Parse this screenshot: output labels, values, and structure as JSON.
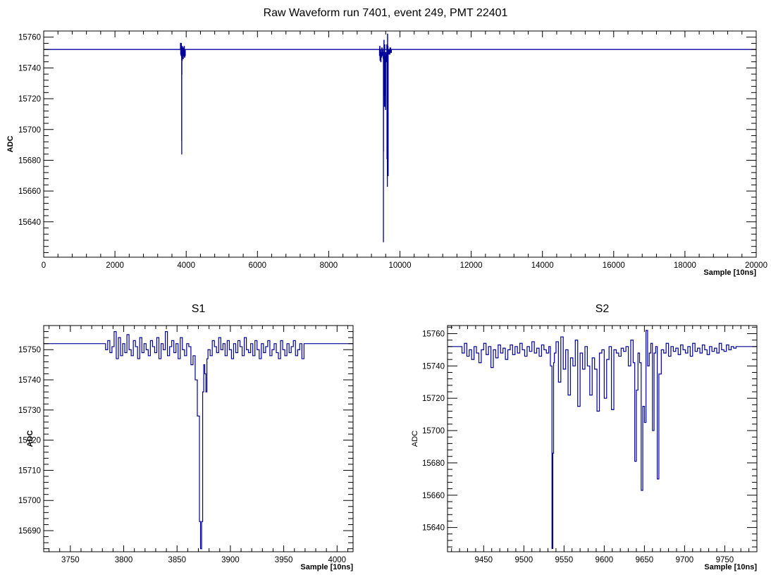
{
  "figure_title": "Raw Waveform run 7401, event 249, PMT 22401",
  "line_color": "#000099",
  "chart_data": [
    {
      "type": "line",
      "title": "",
      "xlabel": "Sample [10ns]",
      "ylabel": "ADC",
      "xlim": [
        0,
        20000
      ],
      "ylim": [
        15617,
        15764
      ],
      "xticks": [
        0,
        2000,
        4000,
        6000,
        8000,
        10000,
        12000,
        14000,
        16000,
        18000,
        20000
      ],
      "yticks": [
        15640,
        15660,
        15680,
        15700,
        15720,
        15740,
        15760
      ],
      "baseline": 15752,
      "series": [
        {
          "x": [
            0,
            3835,
            3838,
            3845,
            3850,
            3855,
            3860,
            3865,
            3870,
            3872,
            3874,
            3876,
            3880,
            3885,
            3890,
            3895,
            3900,
            3905,
            3910,
            3915,
            3920,
            3925,
            3930,
            3940,
            3950,
            3960,
            3970,
            3975,
            9420,
            9425,
            9430,
            9440,
            9450,
            9460,
            9470,
            9480,
            9490,
            9500,
            9510,
            9520,
            9530,
            9535,
            9537,
            9540,
            9545,
            9550,
            9555,
            9560,
            9565,
            9570,
            9575,
            9580,
            9585,
            9590,
            9595,
            9600,
            9610,
            9620,
            9630,
            9635,
            9640,
            9645,
            9648,
            9650,
            9655,
            9660,
            9665,
            9670,
            9680,
            9700,
            9720,
            9740,
            9760,
            9770,
            20000
          ],
          "y": [
            15752,
            15752,
            15756,
            15749,
            15754,
            15748,
            15756,
            15750,
            15747,
            15693,
            15684,
            15736,
            15750,
            15745,
            15754,
            15748,
            15753,
            15749,
            15752,
            15746,
            15753,
            15748,
            15750,
            15754,
            15747,
            15751,
            15748,
            15752,
            15752,
            15748,
            15754,
            15745,
            15752,
            15744,
            15750,
            15747,
            15753,
            15748,
            15752,
            15750,
            15746,
            15627,
            15686,
            15748,
            15730,
            15758,
            15722,
            15740,
            15715,
            15755,
            15733,
            15750,
            15722,
            15740,
            15713,
            15748,
            15750,
            15744,
            15755,
            15681,
            15725,
            15663,
            15705,
            15762,
            15748,
            15754,
            15670,
            15749,
            15752,
            15749,
            15753,
            15750,
            15752,
            15752,
            15752
          ]
        }
      ]
    },
    {
      "type": "line",
      "title": "S1",
      "xlabel": "Sample [10ns]",
      "ylabel": "ADC",
      "xlim": [
        3725,
        4015
      ],
      "ylim": [
        15683,
        15758
      ],
      "xticks": [
        3750,
        3800,
        3850,
        3900,
        3950,
        4000
      ],
      "yticks": [
        15690,
        15700,
        15710,
        15720,
        15730,
        15740,
        15750
      ],
      "series": [
        {
          "x": [
            3725,
            3780,
            3783,
            3785,
            3787,
            3789,
            3791,
            3793,
            3795,
            3797,
            3799,
            3801,
            3803,
            3805,
            3807,
            3809,
            3811,
            3813,
            3815,
            3817,
            3819,
            3821,
            3823,
            3825,
            3827,
            3829,
            3831,
            3833,
            3835,
            3837,
            3839,
            3841,
            3843,
            3845,
            3847,
            3849,
            3851,
            3853,
            3855,
            3857,
            3859,
            3861,
            3863,
            3865,
            3867,
            3869,
            3871,
            3872,
            3873,
            3874,
            3875,
            3876,
            3877,
            3878,
            3879,
            3881,
            3883,
            3885,
            3887,
            3889,
            3891,
            3893,
            3895,
            3897,
            3899,
            3901,
            3903,
            3905,
            3907,
            3909,
            3911,
            3913,
            3915,
            3917,
            3919,
            3921,
            3923,
            3925,
            3927,
            3929,
            3931,
            3933,
            3935,
            3937,
            3939,
            3941,
            3943,
            3945,
            3947,
            3949,
            3951,
            3953,
            3955,
            3957,
            3959,
            3961,
            3963,
            3965,
            3967,
            3969,
            3971,
            4015
          ],
          "y": [
            15752,
            15752,
            15750,
            15753,
            15749,
            15751,
            15756,
            15747,
            15754,
            15748,
            15752,
            15749,
            15755,
            15750,
            15748,
            15753,
            15751,
            15747,
            15754,
            15749,
            15752,
            15750,
            15748,
            15753,
            15751,
            15749,
            15754,
            15747,
            15752,
            15750,
            15756,
            15748,
            15751,
            15753,
            15749,
            15752,
            15747,
            15754,
            15750,
            15748,
            15752,
            15751,
            15745,
            15748,
            15740,
            15728,
            15693,
            15684,
            15693,
            15736,
            15745,
            15742,
            15736,
            15747,
            15750,
            15748,
            15753,
            15751,
            15749,
            15754,
            15750,
            15752,
            15748,
            15753,
            15750,
            15747,
            15752,
            15749,
            15753,
            15751,
            15748,
            15754,
            15750,
            15749,
            15752,
            15748,
            15753,
            15750,
            15747,
            15752,
            15749,
            15751,
            15753,
            15748,
            15750,
            15752,
            15749,
            15747,
            15753,
            15750,
            15748,
            15752,
            15749,
            15751,
            15753,
            15748,
            15750,
            15752,
            15747,
            15752,
            15752,
            15752
          ]
        }
      ]
    },
    {
      "type": "line",
      "title": "S2",
      "xlabel": "Sample [10ns]",
      "ylabel": "ADC",
      "xlim": [
        9405,
        9790
      ],
      "ylim": [
        15625,
        15765
      ],
      "xticks": [
        9450,
        9500,
        9550,
        9600,
        9650,
        9700,
        9750
      ],
      "yticks": [
        15640,
        15660,
        15680,
        15700,
        15720,
        15740,
        15760
      ],
      "series": [
        {
          "x": [
            9405,
            9420,
            9423,
            9426,
            9429,
            9432,
            9435,
            9438,
            9441,
            9444,
            9447,
            9450,
            9453,
            9456,
            9459,
            9462,
            9465,
            9468,
            9471,
            9474,
            9477,
            9480,
            9483,
            9486,
            9489,
            9492,
            9495,
            9498,
            9501,
            9504,
            9507,
            9510,
            9513,
            9516,
            9519,
            9522,
            9525,
            9528,
            9531,
            9533,
            9535,
            9536,
            9537,
            9538,
            9540,
            9543,
            9546,
            9549,
            9552,
            9555,
            9558,
            9561,
            9564,
            9567,
            9570,
            9573,
            9576,
            9579,
            9582,
            9585,
            9588,
            9591,
            9594,
            9597,
            9600,
            9603,
            9606,
            9609,
            9612,
            9615,
            9618,
            9621,
            9624,
            9627,
            9630,
            9633,
            9636,
            9638,
            9640,
            9642,
            9644,
            9646,
            9648,
            9650,
            9652,
            9654,
            9656,
            9658,
            9660,
            9662,
            9664,
            9666,
            9668,
            9671,
            9674,
            9677,
            9680,
            9683,
            9686,
            9689,
            9692,
            9695,
            9698,
            9701,
            9704,
            9707,
            9710,
            9713,
            9716,
            9719,
            9722,
            9725,
            9728,
            9731,
            9734,
            9737,
            9740,
            9743,
            9746,
            9749,
            9752,
            9755,
            9758,
            9761,
            9764,
            9790
          ],
          "y": [
            15752,
            15752,
            15748,
            15754,
            15746,
            15750,
            15744,
            15752,
            15748,
            15742,
            15750,
            15754,
            15747,
            15752,
            15739,
            15750,
            15745,
            15753,
            15748,
            15751,
            15744,
            15750,
            15753,
            15747,
            15752,
            15748,
            15754,
            15750,
            15746,
            15752,
            15749,
            15755,
            15748,
            15751,
            15746,
            15753,
            15750,
            15748,
            15752,
            15740,
            15627,
            15686,
            15742,
            15748,
            15755,
            15730,
            15758,
            15738,
            15750,
            15722,
            15745,
            15740,
            15756,
            15715,
            15748,
            15738,
            15752,
            15740,
            15722,
            15745,
            15738,
            15712,
            15748,
            15750,
            15720,
            15744,
            15752,
            15713,
            15750,
            15748,
            15746,
            15751,
            15749,
            15752,
            15740,
            15756,
            15742,
            15681,
            15725,
            15748,
            15742,
            15663,
            15715,
            15705,
            15762,
            15740,
            15748,
            15754,
            15700,
            15748,
            15752,
            15670,
            15735,
            15750,
            15748,
            15754,
            15746,
            15752,
            15749,
            15751,
            15747,
            15753,
            15750,
            15748,
            15752,
            15746,
            15754,
            15749,
            15751,
            15748,
            15753,
            15750,
            15747,
            15752,
            15749,
            15751,
            15748,
            15754,
            15750,
            15749,
            15753,
            15750,
            15752,
            15751,
            15752,
            15752
          ]
        }
      ]
    }
  ]
}
